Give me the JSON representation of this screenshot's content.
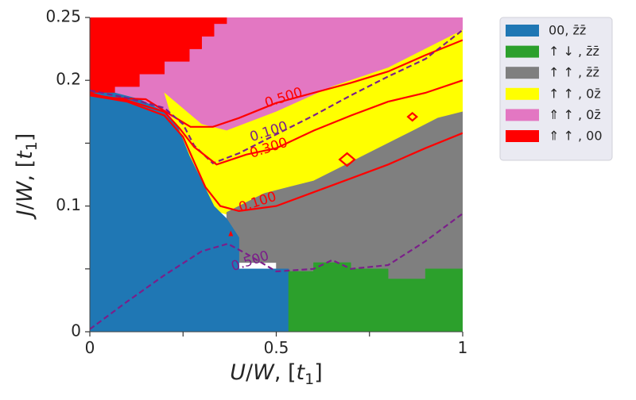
{
  "chart_data": {
    "type": "heatmap",
    "xlabel": "U/W, [t_1]",
    "ylabel": "J/W, [t_1]",
    "xlim": [
      0,
      1
    ],
    "ylim": [
      0,
      0.25
    ],
    "x_ticks": [
      {
        "value": 0,
        "label": "0"
      },
      {
        "value": 0.25,
        "label": ""
      },
      {
        "value": 0.5,
        "label": "0.5"
      },
      {
        "value": 0.75,
        "label": ""
      },
      {
        "value": 1,
        "label": "1"
      }
    ],
    "y_ticks": [
      {
        "value": 0,
        "label": "0"
      },
      {
        "value": 0.05,
        "label": ""
      },
      {
        "value": 0.1,
        "label": "0.1"
      },
      {
        "value": 0.15,
        "label": ""
      },
      {
        "value": 0.2,
        "label": "0.2"
      },
      {
        "value": 0.25,
        "label": "0.25"
      }
    ],
    "legend_position": "outside-right",
    "phases": [
      {
        "id": "p00",
        "label": "00, z̄z̄",
        "color": "#1f77b4"
      },
      {
        "id": "pud",
        "label": "↑ ↓ , z̄z̄",
        "color": "#2ca02c"
      },
      {
        "id": "puu",
        "label": "↑ ↑ , z̄z̄",
        "color": "#7f7f7f"
      },
      {
        "id": "puu0",
        "label": "↑ ↑ , 0z̄",
        "color": "#ffff00"
      },
      {
        "id": "pUu0",
        "label": "⇑ ↑ , 0z̄",
        "color": "#e377c2"
      },
      {
        "id": "pUu00",
        "label": "⇑ ↑ , 00",
        "color": "#ff0000"
      }
    ],
    "phase_regions": [
      {
        "phase": "pUu0",
        "points": [
          [
            0,
            0.25
          ],
          [
            1,
            0.25
          ],
          [
            1,
            0.14
          ],
          [
            0,
            0.14
          ]
        ]
      },
      {
        "phase": "pUu00",
        "points": [
          [
            0,
            0.25
          ],
          [
            0.367,
            0.25
          ],
          [
            0.367,
            0.245
          ],
          [
            0.333,
            0.245
          ],
          [
            0.333,
            0.235
          ],
          [
            0.3,
            0.235
          ],
          [
            0.3,
            0.225
          ],
          [
            0.267,
            0.225
          ],
          [
            0.267,
            0.215
          ],
          [
            0.2,
            0.215
          ],
          [
            0.2,
            0.205
          ],
          [
            0.133,
            0.205
          ],
          [
            0.133,
            0.195
          ],
          [
            0.067,
            0.195
          ],
          [
            0.067,
            0.19
          ],
          [
            0,
            0.19
          ]
        ]
      },
      {
        "phase": "puu0",
        "points": [
          [
            0.2,
            0.19
          ],
          [
            0.3,
            0.165
          ],
          [
            0.367,
            0.16
          ],
          [
            0.5,
            0.175
          ],
          [
            0.65,
            0.195
          ],
          [
            0.8,
            0.21
          ],
          [
            0.9,
            0.225
          ],
          [
            0.967,
            0.235
          ],
          [
            1,
            0.24
          ],
          [
            1,
            0.14
          ],
          [
            0.8,
            0.14
          ],
          [
            0.6,
            0.12
          ],
          [
            0.5,
            0.1
          ],
          [
            0.4,
            0.09
          ],
          [
            0.3,
            0.1
          ],
          [
            0.25,
            0.14
          ]
        ]
      },
      {
        "phase": "puu",
        "points": [
          [
            0.367,
            0.095
          ],
          [
            0.4,
            0.1
          ],
          [
            0.467,
            0.11
          ],
          [
            0.533,
            0.115
          ],
          [
            0.6,
            0.12
          ],
          [
            0.667,
            0.13
          ],
          [
            0.733,
            0.14
          ],
          [
            0.8,
            0.15
          ],
          [
            0.867,
            0.16
          ],
          [
            0.933,
            0.17
          ],
          [
            1,
            0.175
          ],
          [
            1,
            0.05
          ],
          [
            0.9,
            0.05
          ],
          [
            0.9,
            0.042
          ],
          [
            0.8,
            0.042
          ],
          [
            0.8,
            0.05
          ],
          [
            0.7,
            0.05
          ],
          [
            0.7,
            0.055
          ],
          [
            0.6,
            0.055
          ],
          [
            0.6,
            0.048
          ],
          [
            0.5,
            0.048
          ],
          [
            0.5,
            0.055
          ],
          [
            0.367,
            0.055
          ]
        ]
      },
      {
        "phase": "p00",
        "points": [
          [
            0,
            0.19
          ],
          [
            0.067,
            0.19
          ],
          [
            0.133,
            0.185
          ],
          [
            0.2,
            0.175
          ],
          [
            0.233,
            0.165
          ],
          [
            0.267,
            0.14
          ],
          [
            0.3,
            0.12
          ],
          [
            0.333,
            0.1
          ],
          [
            0.367,
            0.09
          ],
          [
            0.4,
            0.075
          ],
          [
            0.4,
            0.05
          ],
          [
            0.533,
            0.05
          ],
          [
            0.533,
            0
          ],
          [
            0,
            0
          ]
        ]
      },
      {
        "phase": "pud",
        "points": [
          [
            0.533,
            0
          ],
          [
            1,
            0
          ],
          [
            1,
            0.05
          ],
          [
            0.9,
            0.05
          ],
          [
            0.9,
            0.042
          ],
          [
            0.8,
            0.042
          ],
          [
            0.8,
            0.05
          ],
          [
            0.7,
            0.05
          ],
          [
            0.7,
            0.055
          ],
          [
            0.6,
            0.055
          ],
          [
            0.6,
            0.048
          ],
          [
            0.533,
            0.048
          ]
        ]
      }
    ],
    "contours": [
      {
        "level_label": "0.500",
        "color": "#ff0000",
        "dash": false,
        "points": [
          [
            0,
            0.19
          ],
          [
            0.05,
            0.186
          ],
          [
            0.15,
            0.185
          ],
          [
            0.22,
            0.172
          ],
          [
            0.27,
            0.163
          ],
          [
            0.33,
            0.163
          ],
          [
            0.4,
            0.17
          ],
          [
            0.5,
            0.182
          ],
          [
            0.6,
            0.19
          ],
          [
            0.7,
            0.198
          ],
          [
            0.8,
            0.207
          ],
          [
            0.9,
            0.22
          ],
          [
            1,
            0.232
          ]
        ],
        "label_at": [
          0.52,
          0.186
        ]
      },
      {
        "level_label": "0.100",
        "color": "#7b1f8a",
        "dash": true,
        "points": [
          [
            0,
            0.192
          ],
          [
            0.1,
            0.186
          ],
          [
            0.2,
            0.178
          ],
          [
            0.25,
            0.165
          ],
          [
            0.28,
            0.148
          ],
          [
            0.33,
            0.134
          ],
          [
            0.4,
            0.142
          ],
          [
            0.5,
            0.157
          ],
          [
            0.6,
            0.172
          ],
          [
            0.7,
            0.188
          ],
          [
            0.8,
            0.203
          ],
          [
            0.9,
            0.217
          ],
          [
            1,
            0.24
          ]
        ],
        "label_at": [
          0.48,
          0.159
        ]
      },
      {
        "level_label": "0.300",
        "color": "#ff0000",
        "dash": false,
        "points": [
          [
            0,
            0.189
          ],
          [
            0.1,
            0.184
          ],
          [
            0.2,
            0.175
          ],
          [
            0.24,
            0.162
          ],
          [
            0.28,
            0.147
          ],
          [
            0.34,
            0.133
          ],
          [
            0.42,
            0.141
          ],
          [
            0.5,
            0.146
          ],
          [
            0.6,
            0.16
          ],
          [
            0.7,
            0.172
          ],
          [
            0.8,
            0.183
          ],
          [
            0.9,
            0.19
          ],
          [
            1,
            0.2
          ]
        ],
        "label_at": [
          0.48,
          0.146
        ]
      },
      {
        "level_label": "0.100",
        "color": "#ff0000",
        "dash": false,
        "points": [
          [
            0,
            0.188
          ],
          [
            0.1,
            0.183
          ],
          [
            0.2,
            0.172
          ],
          [
            0.25,
            0.155
          ],
          [
            0.28,
            0.135
          ],
          [
            0.31,
            0.115
          ],
          [
            0.35,
            0.1
          ],
          [
            0.4,
            0.096
          ],
          [
            0.5,
            0.1
          ],
          [
            0.6,
            0.111
          ],
          [
            0.7,
            0.122
          ],
          [
            0.8,
            0.133
          ],
          [
            0.9,
            0.146
          ],
          [
            1,
            0.158
          ]
        ],
        "label_at": [
          0.45,
          0.103
        ]
      },
      {
        "level_label": "0.500",
        "color": "#7b1f8a",
        "dash": true,
        "points": [
          [
            0,
            0.002
          ],
          [
            0.1,
            0.024
          ],
          [
            0.2,
            0.045
          ],
          [
            0.3,
            0.064
          ],
          [
            0.37,
            0.07
          ],
          [
            0.42,
            0.062
          ],
          [
            0.5,
            0.048
          ],
          [
            0.6,
            0.05
          ],
          [
            0.65,
            0.057
          ],
          [
            0.7,
            0.05
          ],
          [
            0.8,
            0.053
          ],
          [
            0.9,
            0.072
          ],
          [
            1,
            0.094
          ]
        ],
        "label_at": [
          0.43,
          0.056
        ]
      }
    ],
    "diamonds": [
      {
        "x": 0.69,
        "y": 0.137,
        "dx": 0.02,
        "dy": 0.005
      },
      {
        "x": 0.865,
        "y": 0.171,
        "dx": 0.012,
        "dy": 0.003
      }
    ],
    "marker_triangle": {
      "x": 0.378,
      "y": 0.078
    }
  }
}
